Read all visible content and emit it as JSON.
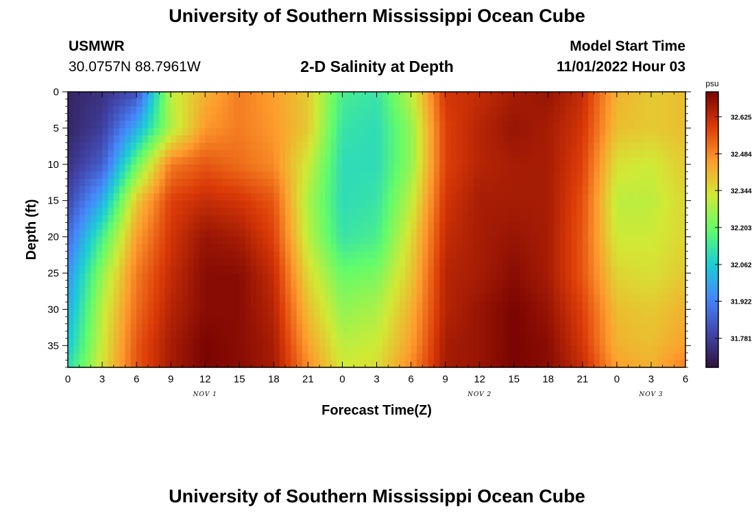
{
  "header": {
    "title": "University of Southern Mississippi Ocean Cube",
    "station": "USMWR",
    "coordinates": "30.0757N  88.7961W",
    "plot_title": "2-D Salinity at Depth",
    "model_start_label": "Model Start Time",
    "model_start_value": "11/01/2022 Hour 03"
  },
  "footer": {
    "title": "University of Southern Mississippi Ocean Cube"
  },
  "colors": {
    "colormap": [
      "#30123b",
      "#4146ac",
      "#4686fb",
      "#1bcfd4",
      "#62fc6b",
      "#d2e935",
      "#fe9b2d",
      "#db3a07",
      "#7a0403"
    ]
  },
  "chart_data": {
    "type": "heatmap",
    "xlabel": "Forecast Time(Z)",
    "ylabel": "Depth (ft)",
    "xlim": [
      0,
      54
    ],
    "ylim": [
      38,
      0
    ],
    "y_reversed": true,
    "x_tick_values": [
      0,
      3,
      6,
      9,
      12,
      15,
      18,
      21,
      24,
      27,
      30,
      33,
      36,
      39,
      42,
      45,
      48,
      51,
      54
    ],
    "x_tick_labels": [
      "0",
      "3",
      "6",
      "9",
      "12",
      "15",
      "18",
      "21",
      "0",
      "3",
      "6",
      "9",
      "12",
      "15",
      "18",
      "21",
      "0",
      "3",
      "6"
    ],
    "date_labels": [
      {
        "x": 12,
        "text": "NOV 1"
      },
      {
        "x": 36,
        "text": "NOV 2"
      },
      {
        "x": 51,
        "text": "NOV 3"
      }
    ],
    "y_tick_values": [
      0,
      5,
      10,
      15,
      20,
      25,
      30,
      35
    ],
    "y_tick_labels": [
      "0",
      "5",
      "10",
      "15",
      "20",
      "25",
      "30",
      "35"
    ],
    "colorbar": {
      "unit": "psu",
      "vmin": 31.67,
      "vmax": 32.72,
      "tick_values": [
        31.781,
        31.922,
        32.062,
        32.203,
        32.344,
        32.484,
        32.625
      ],
      "tick_labels": [
        "31.781",
        "31.922",
        "32.062",
        "32.203",
        "32.344",
        "32.484",
        "32.625"
      ]
    },
    "grid": {
      "x_times": [
        0,
        3,
        6,
        9,
        12,
        15,
        18,
        21,
        24,
        27,
        30,
        33,
        36,
        39,
        42,
        45,
        48,
        51,
        54
      ],
      "depths": [
        0,
        5,
        10,
        15,
        20,
        25,
        30,
        35,
        38
      ],
      "salinity": [
        [
          31.72,
          31.75,
          31.82,
          32.3,
          32.42,
          32.5,
          32.45,
          32.38,
          32.15,
          32.12,
          32.3,
          32.6,
          32.62,
          32.66,
          32.68,
          32.62,
          32.42,
          32.38,
          32.4
        ],
        [
          31.72,
          31.78,
          32.0,
          32.28,
          32.46,
          32.5,
          32.46,
          32.38,
          32.12,
          32.1,
          32.25,
          32.58,
          32.64,
          32.68,
          32.66,
          32.6,
          32.4,
          32.38,
          32.4
        ],
        [
          31.75,
          31.85,
          32.2,
          32.5,
          32.55,
          32.52,
          32.48,
          32.32,
          32.1,
          32.1,
          32.25,
          32.58,
          32.64,
          32.66,
          32.66,
          32.58,
          32.34,
          32.32,
          32.38
        ],
        [
          31.8,
          32.0,
          32.38,
          32.58,
          32.62,
          32.6,
          32.55,
          32.28,
          32.1,
          32.12,
          32.3,
          32.6,
          32.66,
          32.66,
          32.66,
          32.56,
          32.3,
          32.3,
          32.36
        ],
        [
          31.88,
          32.15,
          32.45,
          32.6,
          32.68,
          32.66,
          32.58,
          32.3,
          32.12,
          32.15,
          32.35,
          32.62,
          32.66,
          32.68,
          32.66,
          32.55,
          32.32,
          32.32,
          32.36
        ],
        [
          31.95,
          32.25,
          32.5,
          32.62,
          32.7,
          32.7,
          32.62,
          32.35,
          32.2,
          32.22,
          32.38,
          32.64,
          32.66,
          32.7,
          32.66,
          32.55,
          32.36,
          32.34,
          32.38
        ],
        [
          32.0,
          32.3,
          32.52,
          32.64,
          32.7,
          32.7,
          32.64,
          32.4,
          32.25,
          32.28,
          32.42,
          32.64,
          32.68,
          32.72,
          32.68,
          32.58,
          32.4,
          32.38,
          32.42
        ],
        [
          32.05,
          32.32,
          32.55,
          32.66,
          32.72,
          32.7,
          32.66,
          32.45,
          32.3,
          32.32,
          32.45,
          32.66,
          32.68,
          32.72,
          32.7,
          32.6,
          32.42,
          32.4,
          32.45
        ],
        [
          32.1,
          32.34,
          32.55,
          32.66,
          32.72,
          32.7,
          32.66,
          32.48,
          32.32,
          32.35,
          32.48,
          32.66,
          32.68,
          32.72,
          32.7,
          32.62,
          32.45,
          32.42,
          32.5
        ]
      ]
    }
  }
}
